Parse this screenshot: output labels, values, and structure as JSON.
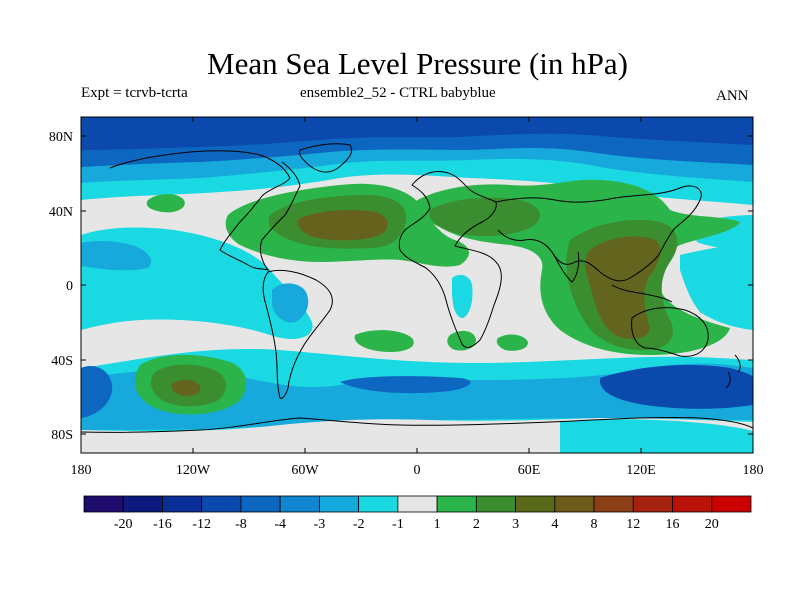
{
  "title": "Mean Sea Level Pressure (in hPa)",
  "subtitle_left": "Expt = tcrvb-tcrta",
  "subtitle_center": "ensemble2_52 - CTRL babyblue",
  "subtitle_right": "ANN",
  "lat_ticks": [
    "80N",
    "40N",
    "0",
    "40S",
    "80S"
  ],
  "lon_ticks": [
    "180",
    "120W",
    "60W",
    "0",
    "60E",
    "120E",
    "180"
  ],
  "colorbar": {
    "labels": [
      "-20",
      "-16",
      "-12",
      "-8",
      "-4",
      "-3",
      "-2",
      "-1",
      "1",
      "2",
      "3",
      "4",
      "8",
      "12",
      "16",
      "20"
    ],
    "colors": [
      "#1e0b6e",
      "#0b1a7c",
      "#0a2f96",
      "#0b49ad",
      "#0d66bf",
      "#0f86cf",
      "#17a9dc",
      "#1ad9e2",
      "#e6e6e6",
      "#2bb44a",
      "#3b8e2f",
      "#5b6a18",
      "#6e5a1a",
      "#8d3f15",
      "#a5230e",
      "#bb1208",
      "#cc0000"
    ]
  },
  "chart_data": {
    "type": "heatmap",
    "title": "Mean Sea Level Pressure (in hPa)",
    "x_ticks": [
      "180",
      "120W",
      "60W",
      "0",
      "60E",
      "120E",
      "180"
    ],
    "y_ticks": [
      "80N",
      "40N",
      "0",
      "40S",
      "80S"
    ],
    "contour_levels": [
      -20,
      -16,
      -12,
      -8,
      -4,
      -3,
      -2,
      -1,
      1,
      2,
      3,
      4,
      8,
      12,
      16,
      20
    ],
    "xlim": [
      -180,
      180
    ],
    "ylim": [
      -90,
      90
    ]
  }
}
